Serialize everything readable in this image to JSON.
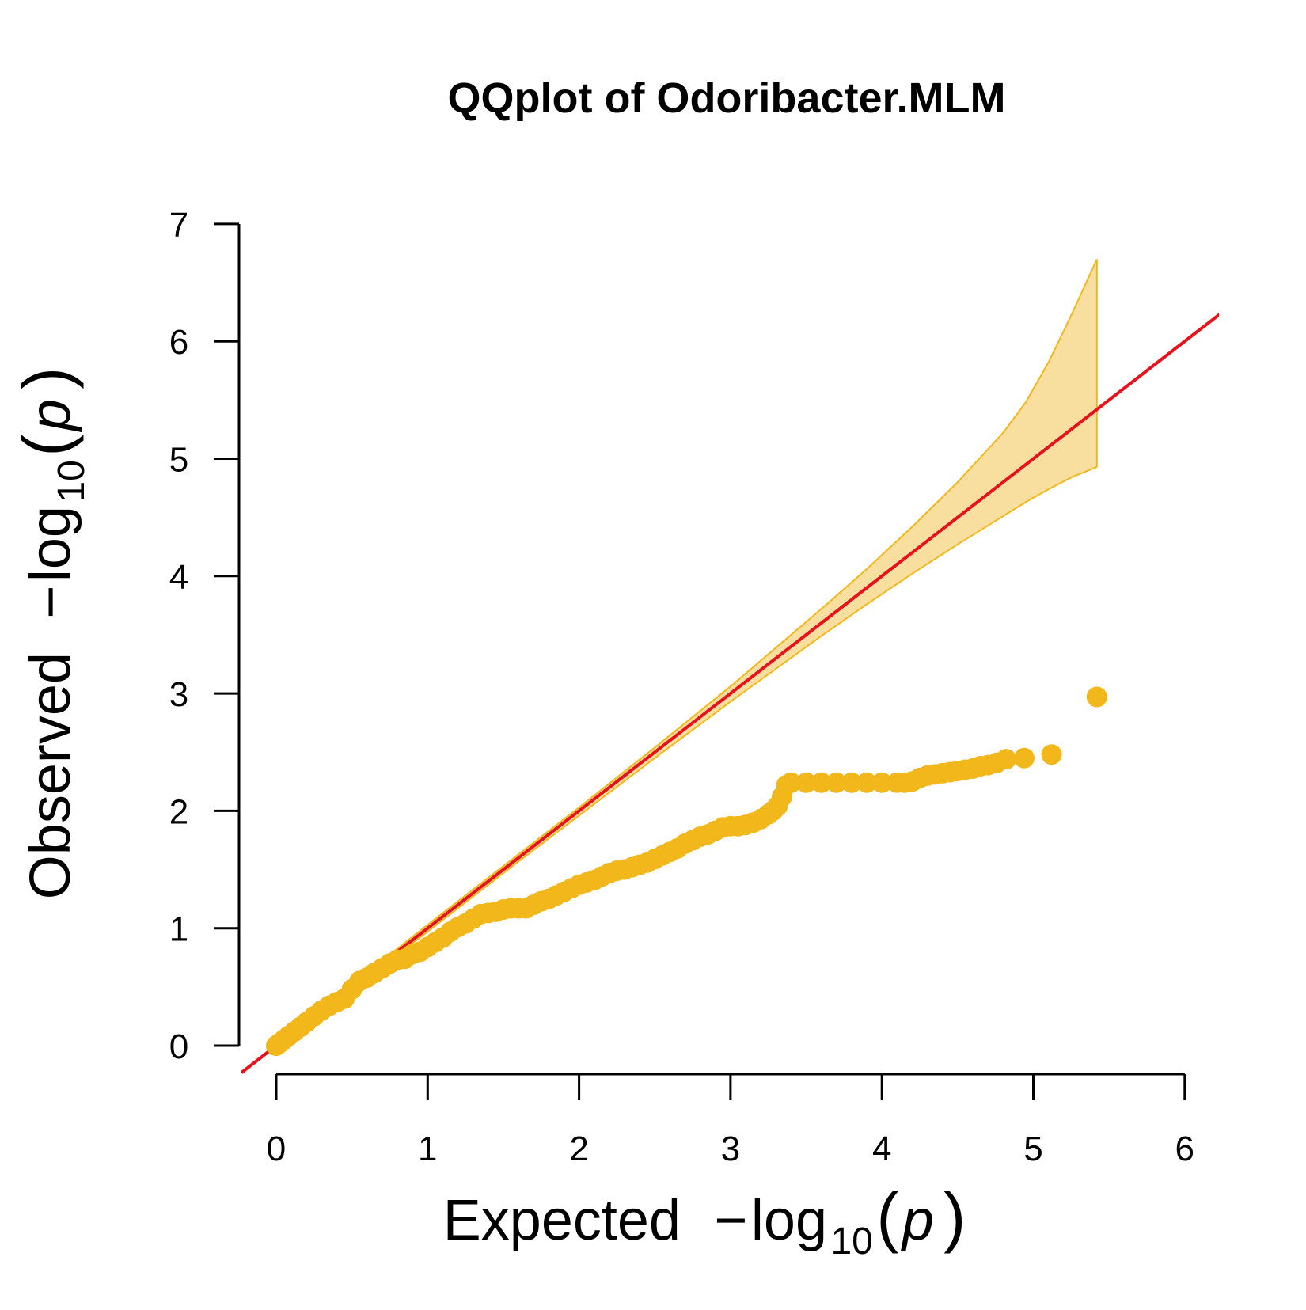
{
  "chart_data": {
    "type": "scatter",
    "title": "QQplot of Odoribacter.MLM",
    "xlabel": {
      "prefix": "Expected",
      "minus": "−",
      "log": "log",
      "sub": "10",
      "open": "(",
      "var": "p",
      "close": ")"
    },
    "ylabel": {
      "prefix": "Observed",
      "minus": "−",
      "log": "log",
      "sub": "10",
      "open": "(",
      "var": "p",
      "close": ")"
    },
    "xlim": [
      0,
      6
    ],
    "ylim": [
      0,
      7
    ],
    "xticks": [
      "0",
      "1",
      "2",
      "3",
      "4",
      "5",
      "6"
    ],
    "yticks": [
      "0",
      "1",
      "2",
      "3",
      "4",
      "5",
      "6",
      "7"
    ],
    "grid": false,
    "colors": {
      "points": "#F2B71B",
      "band_fill": "#F8DFA0",
      "band_line": "#F2B71B",
      "reference_line": "#E8121C"
    },
    "reference_line": {
      "x": [
        -0.23,
        6.23
      ],
      "y": [
        -0.23,
        6.23
      ]
    },
    "confidence_band": {
      "x": [
        0,
        0.5,
        1.0,
        1.5,
        2.0,
        2.5,
        3.0,
        3.3,
        3.6,
        3.9,
        4.2,
        4.5,
        4.8,
        4.95,
        5.1,
        5.25,
        5.42
      ],
      "upper": [
        0.02,
        0.52,
        1.03,
        1.53,
        2.03,
        2.54,
        3.06,
        3.39,
        3.72,
        4.06,
        4.42,
        4.8,
        5.22,
        5.48,
        5.82,
        6.22,
        6.7
      ],
      "lower": [
        0.0,
        0.48,
        0.97,
        1.47,
        1.96,
        2.45,
        2.93,
        3.21,
        3.49,
        3.76,
        4.02,
        4.27,
        4.51,
        4.63,
        4.74,
        4.84,
        4.93
      ]
    },
    "points": {
      "x": [
        0.0,
        0.02,
        0.05,
        0.08,
        0.12,
        0.16,
        0.2,
        0.25,
        0.3,
        0.35,
        0.4,
        0.45,
        0.5,
        0.55,
        0.6,
        0.65,
        0.7,
        0.75,
        0.8,
        0.85,
        0.9,
        0.95,
        1.0,
        1.05,
        1.1,
        1.15,
        1.2,
        1.25,
        1.3,
        1.35,
        1.4,
        1.45,
        1.5,
        1.55,
        1.6,
        1.65,
        1.7,
        1.75,
        1.8,
        1.85,
        1.9,
        1.95,
        2.0,
        2.05,
        2.1,
        2.15,
        2.2,
        2.25,
        2.3,
        2.35,
        2.4,
        2.45,
        2.5,
        2.55,
        2.6,
        2.65,
        2.7,
        2.75,
        2.8,
        2.85,
        2.9,
        2.95,
        3.0,
        3.05,
        3.1,
        3.15,
        3.2,
        3.25,
        3.28,
        3.31,
        3.34,
        3.37,
        3.4,
        3.5,
        3.6,
        3.7,
        3.8,
        3.9,
        4.0,
        4.1,
        4.15,
        4.2,
        4.25,
        4.3,
        4.35,
        4.4,
        4.45,
        4.5,
        4.55,
        4.6,
        4.65,
        4.7,
        4.76,
        4.82,
        4.94,
        5.12,
        5.42
      ],
      "y": [
        0.0,
        0.02,
        0.05,
        0.08,
        0.12,
        0.16,
        0.2,
        0.25,
        0.3,
        0.34,
        0.37,
        0.4,
        0.48,
        0.55,
        0.58,
        0.62,
        0.66,
        0.7,
        0.73,
        0.74,
        0.78,
        0.8,
        0.84,
        0.88,
        0.92,
        0.97,
        1.01,
        1.04,
        1.08,
        1.12,
        1.13,
        1.14,
        1.16,
        1.17,
        1.17,
        1.17,
        1.2,
        1.23,
        1.25,
        1.28,
        1.31,
        1.34,
        1.37,
        1.39,
        1.41,
        1.44,
        1.47,
        1.49,
        1.5,
        1.52,
        1.54,
        1.56,
        1.59,
        1.62,
        1.65,
        1.68,
        1.72,
        1.75,
        1.78,
        1.8,
        1.83,
        1.86,
        1.87,
        1.87,
        1.88,
        1.9,
        1.93,
        1.97,
        2.0,
        2.04,
        2.12,
        2.22,
        2.24,
        2.24,
        2.24,
        2.24,
        2.24,
        2.24,
        2.24,
        2.24,
        2.24,
        2.25,
        2.28,
        2.3,
        2.31,
        2.32,
        2.33,
        2.34,
        2.35,
        2.36,
        2.38,
        2.39,
        2.41,
        2.44,
        2.45,
        2.48,
        2.97
      ]
    }
  }
}
